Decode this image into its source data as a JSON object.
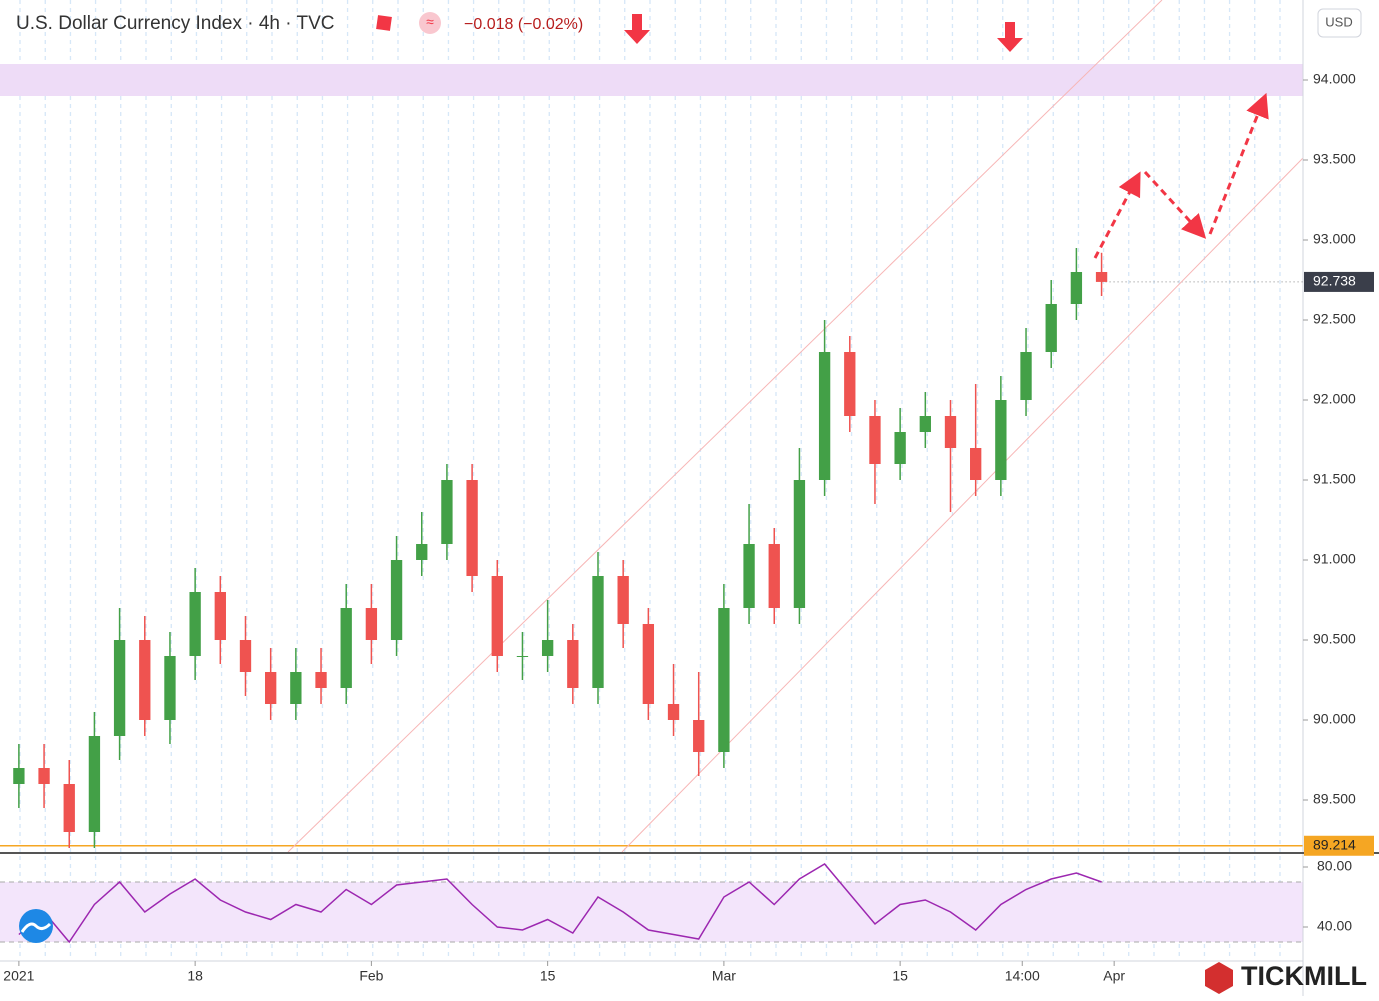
{
  "chart_data": [
    {
      "type": "candlestick",
      "title": "U.S. Dollar Currency Index · 4h · TVC",
      "change": "−0.018 (−0.02%)",
      "currency": "USD",
      "x": [
        4,
        6,
        8,
        10,
        12,
        14,
        16,
        18,
        20,
        22,
        24,
        26,
        28,
        30,
        32,
        34,
        36,
        38,
        40,
        42,
        44,
        46,
        48,
        50,
        52,
        54,
        56,
        58,
        60,
        62,
        64,
        66,
        68,
        70,
        72,
        74,
        76,
        78,
        80,
        82,
        84,
        86,
        88,
        90
      ],
      "open": [
        89.6,
        89.7,
        89.6,
        89.3,
        89.9,
        90.5,
        90.0,
        90.4,
        90.8,
        90.5,
        90.3,
        90.1,
        90.3,
        90.2,
        90.7,
        90.5,
        91.0,
        91.1,
        91.5,
        90.9,
        90.4,
        90.4,
        90.5,
        90.2,
        90.9,
        90.6,
        90.1,
        90.0,
        89.8,
        90.7,
        91.1,
        90.7,
        91.5,
        92.3,
        91.9,
        91.6,
        91.8,
        91.9,
        91.7,
        91.5,
        92.0,
        92.3,
        92.6,
        92.8
      ],
      "high": [
        89.85,
        89.85,
        89.75,
        90.05,
        90.7,
        90.65,
        90.55,
        90.95,
        90.9,
        90.65,
        90.45,
        90.45,
        90.45,
        90.85,
        90.85,
        91.15,
        91.3,
        91.6,
        91.6,
        91.0,
        90.55,
        90.75,
        90.6,
        91.05,
        91.0,
        90.7,
        90.35,
        90.3,
        90.85,
        91.35,
        91.2,
        91.7,
        92.5,
        92.4,
        92.0,
        91.95,
        92.05,
        92.0,
        92.1,
        92.15,
        92.45,
        92.75,
        92.95,
        92.92
      ],
      "low": [
        89.45,
        89.45,
        89.2,
        89.2,
        89.75,
        89.9,
        89.85,
        90.25,
        90.35,
        90.15,
        90.0,
        90.0,
        90.1,
        90.1,
        90.35,
        90.4,
        90.9,
        91.0,
        90.8,
        90.3,
        90.25,
        90.3,
        90.1,
        90.1,
        90.45,
        90.0,
        89.9,
        89.65,
        89.7,
        90.6,
        90.6,
        90.6,
        91.4,
        91.8,
        91.35,
        91.5,
        91.7,
        91.3,
        91.4,
        91.4,
        91.9,
        92.2,
        92.5,
        92.65
      ],
      "close": [
        89.7,
        89.6,
        89.3,
        89.9,
        90.5,
        90.0,
        90.4,
        90.8,
        90.5,
        90.3,
        90.1,
        90.3,
        90.2,
        90.7,
        90.5,
        91.0,
        91.1,
        91.5,
        90.9,
        90.4,
        90.4,
        90.5,
        90.2,
        90.9,
        90.6,
        90.1,
        90.0,
        89.8,
        90.7,
        91.1,
        90.7,
        91.5,
        92.3,
        91.9,
        91.6,
        91.8,
        91.9,
        91.7,
        91.5,
        92.0,
        92.3,
        92.6,
        92.8,
        92.738
      ],
      "up_color": "#43a047",
      "down_color": "#ef5350",
      "xlim": [
        2.5,
        106
      ],
      "ylim": [
        89.175,
        94.5
      ],
      "xticks": [
        {
          "value": 4,
          "label": "2021"
        },
        {
          "value": 18,
          "label": "18"
        },
        {
          "value": 32,
          "label": "Feb"
        },
        {
          "value": 46,
          "label": "15"
        },
        {
          "value": 60,
          "label": "Mar"
        },
        {
          "value": 74,
          "label": "15"
        },
        {
          "value": 83.7,
          "label": "14:00"
        },
        {
          "value": 91,
          "label": "Apr"
        }
      ],
      "yticks": [
        {
          "value": 89.5,
          "label": "89.500"
        },
        {
          "value": 90,
          "label": "90.000"
        },
        {
          "value": 90.5,
          "label": "90.500"
        },
        {
          "value": 91,
          "label": "91.000"
        },
        {
          "value": 91.5,
          "label": "91.500"
        },
        {
          "value": 92,
          "label": "92.000"
        },
        {
          "value": 92.5,
          "label": "92.500"
        },
        {
          "value": 93,
          "label": "93.000"
        },
        {
          "value": 93.5,
          "label": "93.500"
        },
        {
          "value": 94,
          "label": "94.000"
        }
      ],
      "zone": [
        93.9,
        94.1
      ],
      "zone_color": "#eedcf7",
      "level": 89.214,
      "level_color": "#f5a623"
    },
    {
      "type": "line",
      "x": [
        4,
        6,
        8,
        10,
        12,
        14,
        16,
        18,
        20,
        22,
        24,
        26,
        28,
        30,
        32,
        34,
        36,
        38,
        40,
        42,
        44,
        46,
        48,
        50,
        52,
        54,
        56,
        58,
        60,
        62,
        64,
        66,
        68,
        70,
        72,
        74,
        76,
        78,
        80,
        82,
        84,
        86,
        88,
        90
      ],
      "values": [
        35,
        50,
        30,
        55,
        70,
        50,
        62,
        72,
        58,
        50,
        45,
        55,
        50,
        65,
        55,
        68,
        70,
        72,
        55,
        40,
        38,
        45,
        36,
        60,
        50,
        38,
        35,
        32,
        60,
        70,
        55,
        72,
        82,
        62,
        42,
        55,
        58,
        50,
        38,
        55,
        65,
        72,
        76,
        70
      ],
      "color": "#9c27b0",
      "band": [
        30,
        70
      ],
      "band_color": "#f3e5fb",
      "xlim": [
        2.5,
        106
      ],
      "ylim": [
        20,
        88
      ],
      "yticks": [
        {
          "value": 80,
          "label": "80.00"
        },
        {
          "value": 40,
          "label": "40.00"
        }
      ]
    }
  ],
  "brand": "TICKMILL"
}
